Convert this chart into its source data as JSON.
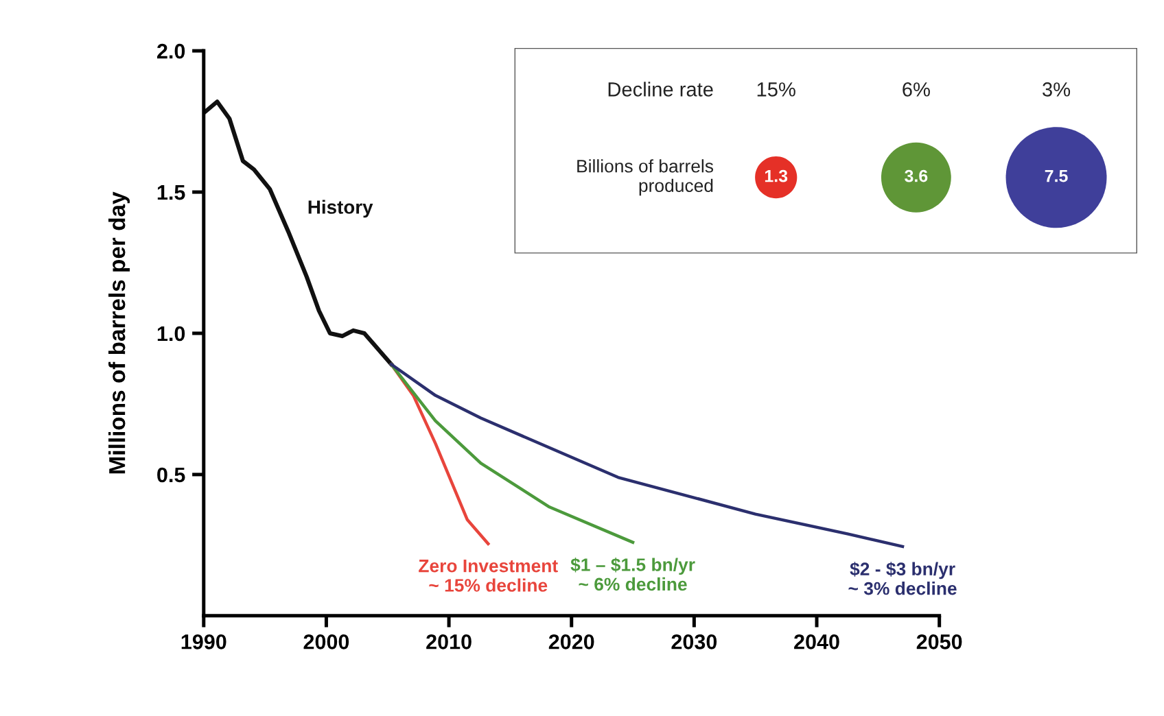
{
  "chart_data": [
    {
      "type": "line",
      "ylabel": "Millions of barrels per day",
      "xlim": [
        1990,
        2050
      ],
      "xticks": [
        1990,
        2000,
        2010,
        2020,
        2030,
        2040,
        2050
      ],
      "ylim": [
        0,
        2.0
      ],
      "yticks": [
        {
          "value": 0.5,
          "label": "0.5"
        },
        {
          "value": 1.0,
          "label": "1.0"
        },
        {
          "value": 1.5,
          "label": "1.5"
        },
        {
          "value": 2.0,
          "label": "2.0"
        }
      ],
      "grid": false,
      "legend": false,
      "marker": "none",
      "line_style": "solid",
      "series": [
        {
          "name": "History",
          "color": "#111111",
          "x": [
            1990,
            1991.1,
            1992.1,
            1993.2,
            1994.1,
            1995.4,
            1996.9,
            1998.4,
            1999.4,
            2000.3,
            2001.3,
            2002.2,
            2003.1,
            2004.1,
            2005.3
          ],
          "values": [
            1.78,
            1.82,
            1.76,
            1.61,
            1.58,
            1.51,
            1.36,
            1.2,
            1.08,
            1.0,
            0.99,
            1.01,
            1.0,
            0.95,
            0.89
          ]
        },
        {
          "name": "Zero Investment\n~ 15% decline",
          "color": "#e8453c",
          "x": [
            2005.3,
            2007.1,
            2008.9,
            2011.5,
            2013.2
          ],
          "values": [
            0.89,
            0.78,
            0.61,
            0.34,
            0.255
          ]
        },
        {
          "name": "$1 – $1.5 bn/yr\n~ 6% decline",
          "color": "#4c9a3c",
          "x": [
            2005.3,
            2008.9,
            2012.6,
            2018.2,
            2025
          ],
          "values": [
            0.89,
            0.69,
            0.54,
            0.385,
            0.26
          ]
        },
        {
          "name": "$2 - $3 bn/yr\n~ 3% decline",
          "color": "#2b2f6e",
          "x": [
            2005.3,
            2008.9,
            2012.6,
            2023.8,
            2035,
            2042.5,
            2047
          ],
          "values": [
            0.89,
            0.78,
            0.7,
            0.49,
            0.36,
            0.29,
            0.245
          ]
        }
      ]
    },
    {
      "type": "other",
      "xlabel": "Decline rate",
      "ylabel": "Billions of barrels\nproduced",
      "categories": [
        "15%",
        "6%",
        "3%"
      ],
      "values": [
        1.3,
        3.6,
        7.5
      ],
      "colors": [
        "#e53027",
        "#5f9637",
        "#3f3f9a"
      ],
      "data_labels": true
    }
  ]
}
